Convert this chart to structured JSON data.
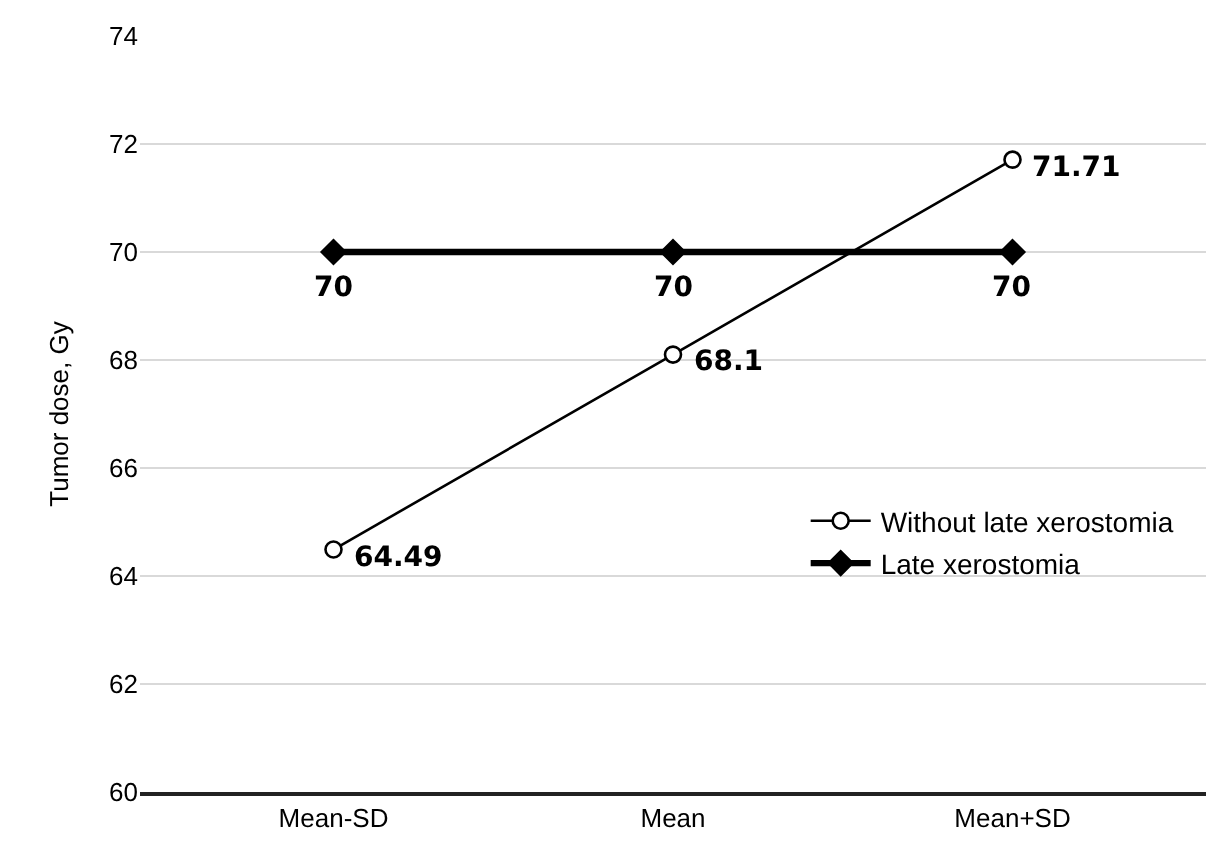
{
  "chart_data": {
    "type": "line",
    "ylabel": "Tumor dose, Gy",
    "categories": [
      "Mean-SD",
      "Mean",
      "Mean+SD"
    ],
    "series": [
      {
        "name": "Without late xerostomia",
        "color": "#000000",
        "marker": "circle",
        "values": [
          64.49,
          68.1,
          71.71
        ]
      },
      {
        "name": "Late xerostomia",
        "color": "#000000",
        "marker": "diamond",
        "values": [
          70,
          70,
          70
        ]
      }
    ],
    "ylim": [
      60,
      74
    ],
    "yticks": [
      60,
      62,
      64,
      66,
      68,
      70,
      72,
      74
    ],
    "grid": "y",
    "legend": "right",
    "data_labels": true,
    "line_style": "solid"
  }
}
